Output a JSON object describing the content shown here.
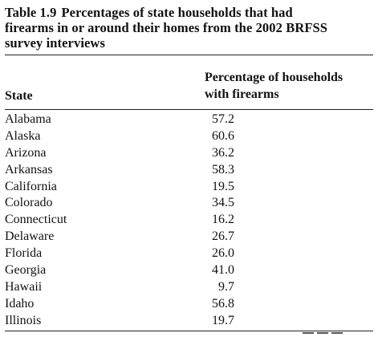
{
  "table": {
    "number": "Table 1.9",
    "caption_line1": "Percentages of state households that had",
    "caption_line2": "firearms in or around their homes from the 2002 BRFSS",
    "caption_line3": "survey interviews",
    "header_state": "State",
    "header_pct_line1": "Percentage of households",
    "header_pct_line2": "with firearms",
    "rows": [
      {
        "state": "Alabama",
        "pct": "57.2"
      },
      {
        "state": "Alaska",
        "pct": "60.6"
      },
      {
        "state": "Arizona",
        "pct": "36.2"
      },
      {
        "state": "Arkansas",
        "pct": "58.3"
      },
      {
        "state": "California",
        "pct": "19.5"
      },
      {
        "state": "Colorado",
        "pct": "34.5"
      },
      {
        "state": "Connecticut",
        "pct": "16.2"
      },
      {
        "state": "Delaware",
        "pct": "26.7"
      },
      {
        "state": "Florida",
        "pct": "26.0"
      },
      {
        "state": "Georgia",
        "pct": "41.0"
      },
      {
        "state": "Hawaii",
        "pct": "9.7"
      },
      {
        "state": "Idaho",
        "pct": "56.8"
      },
      {
        "state": "Illinois",
        "pct": "19.7"
      }
    ]
  }
}
